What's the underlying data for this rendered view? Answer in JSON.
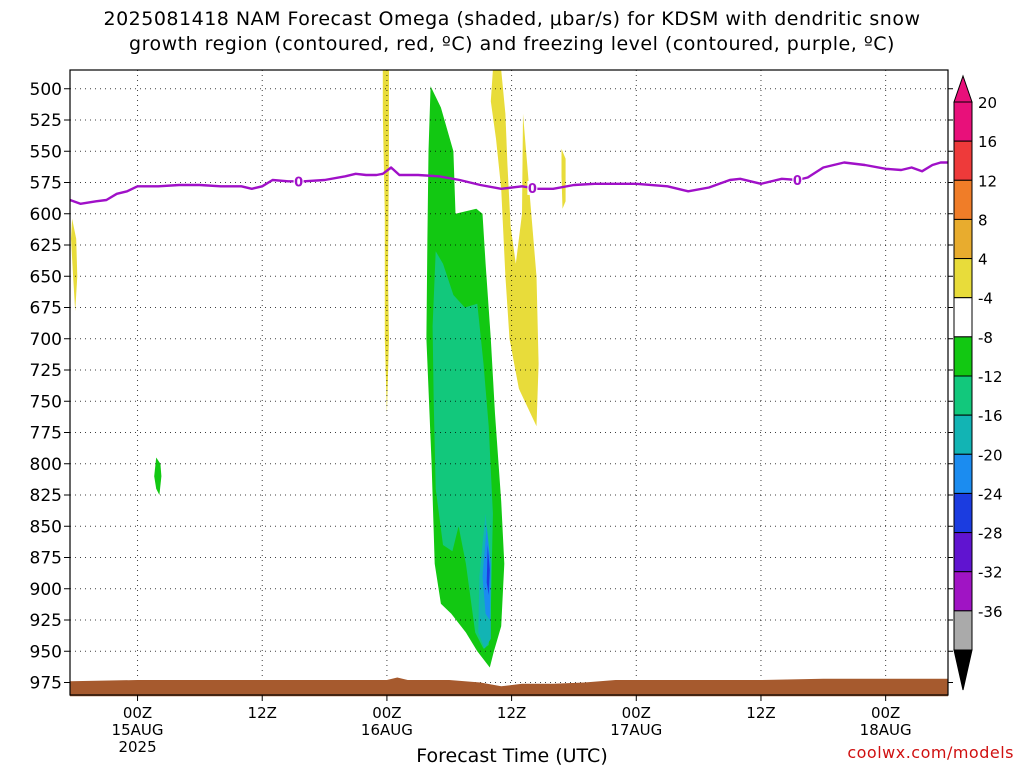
{
  "title": {
    "line1": "2025081418 NAM Forecast Omega (shaded, μbar/s) for KDSM with dendritic snow",
    "line2": "growth region (contoured, red, ºC) and freezing level (contoured, purple, ºC)"
  },
  "credit": "coolwx.com/models",
  "chart_data": {
    "type": "heatmap",
    "xlabel": "Forecast Time (UTC)",
    "ylabel": "",
    "y_axis": {
      "orientation": "pressure, increasing downward",
      "range": [
        485,
        985
      ],
      "ticks": [
        500,
        525,
        550,
        575,
        600,
        625,
        650,
        675,
        700,
        725,
        750,
        775,
        800,
        825,
        850,
        875,
        900,
        925,
        950,
        975
      ]
    },
    "x_axis": {
      "unit": "hours from 00Z 15AUG 2025",
      "range": [
        -6.5,
        78
      ],
      "ticks": [
        {
          "hour": 0,
          "label": "00Z",
          "sub": "15AUG",
          "sub2": "2025"
        },
        {
          "hour": 12,
          "label": "12Z"
        },
        {
          "hour": 24,
          "label": "00Z",
          "sub": "16AUG"
        },
        {
          "hour": 36,
          "label": "12Z"
        },
        {
          "hour": 48,
          "label": "00Z",
          "sub": "17AUG"
        },
        {
          "hour": 60,
          "label": "12Z"
        },
        {
          "hour": 72,
          "label": "00Z",
          "sub": "18AUG"
        }
      ]
    },
    "grid": true,
    "colorbar": {
      "top_arrow": "#e8107a",
      "bottom_arrow": "#000000",
      "bins": [
        {
          "lo": 20,
          "hi": 24,
          "color": "#e8107a"
        },
        {
          "lo": 16,
          "hi": 20,
          "color": "#ee3a3a"
        },
        {
          "lo": 12,
          "hi": 16,
          "color": "#f07d28"
        },
        {
          "lo": 8,
          "hi": 12,
          "color": "#e8ac2e"
        },
        {
          "lo": 4,
          "hi": 8,
          "color": "#e8dc3a"
        },
        {
          "lo": -4,
          "hi": 4,
          "color": "#ffffff"
        },
        {
          "lo": -8,
          "hi": -4,
          "color": "#12c812"
        },
        {
          "lo": -12,
          "hi": -8,
          "color": "#12c87c"
        },
        {
          "lo": -16,
          "hi": -12,
          "color": "#12b4b4"
        },
        {
          "lo": -20,
          "hi": -16,
          "color": "#1b8cf0"
        },
        {
          "lo": -24,
          "hi": -20,
          "color": "#1b3ce0"
        },
        {
          "lo": -28,
          "hi": -24,
          "color": "#6014d0"
        },
        {
          "lo": -32,
          "hi": -28,
          "color": "#a014c4"
        },
        {
          "lo": -36,
          "hi": -32,
          "color": "#aaaaaa"
        }
      ],
      "labels": [
        20,
        16,
        12,
        8,
        4,
        -4,
        -8,
        -12,
        -16,
        -20,
        -24,
        -28,
        -32,
        -36
      ]
    },
    "freezing_level": {
      "label": "0",
      "color": "#a010c8",
      "label_hours": [
        15.5,
        38,
        63.5
      ],
      "points": [
        [
          -6.5,
          589
        ],
        [
          -5.5,
          592
        ],
        [
          -4,
          590
        ],
        [
          -3,
          589
        ],
        [
          -2,
          584
        ],
        [
          -1,
          582
        ],
        [
          0,
          578
        ],
        [
          2,
          578
        ],
        [
          4,
          577
        ],
        [
          6,
          577
        ],
        [
          8,
          578
        ],
        [
          10,
          578
        ],
        [
          11,
          580
        ],
        [
          12,
          578
        ],
        [
          13,
          573
        ],
        [
          14.5,
          574
        ],
        [
          16,
          574
        ],
        [
          18,
          573
        ],
        [
          20,
          570
        ],
        [
          21,
          568
        ],
        [
          22,
          569
        ],
        [
          23,
          569
        ],
        [
          23.6,
          568
        ],
        [
          24.4,
          563
        ],
        [
          25.2,
          569
        ],
        [
          27,
          569
        ],
        [
          29,
          570
        ],
        [
          31,
          573
        ],
        [
          33,
          577
        ],
        [
          35,
          580
        ],
        [
          37,
          578
        ],
        [
          38.5,
          580
        ],
        [
          40,
          580
        ],
        [
          42,
          577
        ],
        [
          44,
          576
        ],
        [
          48,
          576
        ],
        [
          51,
          578
        ],
        [
          53,
          582
        ],
        [
          55,
          579
        ],
        [
          56,
          576
        ],
        [
          57,
          573
        ],
        [
          58,
          572
        ],
        [
          60,
          576
        ],
        [
          62,
          572
        ],
        [
          63.5,
          573
        ],
        [
          64.5,
          571
        ],
        [
          66,
          563
        ],
        [
          68,
          559
        ],
        [
          70,
          561
        ],
        [
          72,
          564
        ],
        [
          73.5,
          565
        ],
        [
          74.5,
          563
        ],
        [
          75.5,
          566
        ],
        [
          76.5,
          561
        ],
        [
          77.3,
          559
        ],
        [
          78,
          559
        ]
      ]
    },
    "terrain": {
      "color": "#a65a2e",
      "points": [
        [
          -6.5,
          974
        ],
        [
          0,
          973
        ],
        [
          12,
          973
        ],
        [
          24,
          973
        ],
        [
          25,
          971
        ],
        [
          26,
          973
        ],
        [
          30,
          973
        ],
        [
          33,
          975
        ],
        [
          35,
          978
        ],
        [
          37,
          976
        ],
        [
          40,
          976
        ],
        [
          43,
          975
        ],
        [
          46,
          973
        ],
        [
          60,
          973
        ],
        [
          66,
          972
        ],
        [
          78,
          972
        ]
      ],
      "base": 986
    },
    "omega_regions": [
      {
        "value": 5,
        "color": "#e8dc3a",
        "points": [
          [
            -6.3,
            604
          ],
          [
            -5.9,
            620
          ],
          [
            -5.8,
            650
          ],
          [
            -6.0,
            678
          ],
          [
            -6.2,
            650
          ],
          [
            -6.4,
            620
          ]
        ]
      },
      {
        "value": 5,
        "color": "#e8dc3a",
        "points": [
          [
            23.6,
            485
          ],
          [
            24.2,
            485
          ],
          [
            24.2,
            550
          ],
          [
            24.1,
            650
          ],
          [
            24.2,
            700
          ],
          [
            24.0,
            760
          ],
          [
            23.8,
            700
          ],
          [
            23.8,
            600
          ],
          [
            23.6,
            520
          ]
        ]
      },
      {
        "value": 5,
        "color": "#e8dc3a",
        "points": [
          [
            34.2,
            485
          ],
          [
            35.0,
            485
          ],
          [
            35.4,
            520
          ],
          [
            35.6,
            560
          ],
          [
            35.9,
            610
          ],
          [
            36.4,
            640
          ],
          [
            37.0,
            600
          ],
          [
            37.1,
            520
          ],
          [
            37.4,
            550
          ],
          [
            38.4,
            650
          ],
          [
            38.6,
            720
          ],
          [
            38.4,
            770
          ],
          [
            36.7,
            740
          ],
          [
            35.8,
            700
          ],
          [
            35.4,
            650
          ],
          [
            35.0,
            580
          ],
          [
            34.5,
            540
          ],
          [
            34.0,
            510
          ]
        ]
      },
      {
        "value": 5,
        "color": "#e8dc3a",
        "points": [
          [
            40.8,
            548
          ],
          [
            41.2,
            556
          ],
          [
            41.2,
            590
          ],
          [
            40.9,
            596
          ],
          [
            40.8,
            570
          ]
        ]
      },
      {
        "value": -6,
        "color": "#12c812",
        "points": [
          [
            28.2,
            498
          ],
          [
            29.2,
            515
          ],
          [
            30.4,
            550
          ],
          [
            30.6,
            600
          ],
          [
            32.6,
            596
          ],
          [
            33.2,
            600
          ],
          [
            33.5,
            640
          ],
          [
            34.0,
            700
          ],
          [
            34.4,
            760
          ],
          [
            35.0,
            830
          ],
          [
            35.3,
            880
          ],
          [
            35.0,
            930
          ],
          [
            34.3,
            950
          ],
          [
            33.9,
            963
          ],
          [
            32.7,
            950
          ],
          [
            31.6,
            935
          ],
          [
            30.2,
            920
          ],
          [
            29.2,
            912
          ],
          [
            28.6,
            880
          ],
          [
            28.3,
            800
          ],
          [
            27.8,
            700
          ],
          [
            27.9,
            620
          ],
          [
            28.0,
            550
          ]
        ]
      },
      {
        "value": -6,
        "color": "#12c812",
        "points": [
          [
            1.8,
            795
          ],
          [
            2.2,
            800
          ],
          [
            2.3,
            810
          ],
          [
            2.1,
            825
          ],
          [
            1.8,
            820
          ],
          [
            1.6,
            810
          ]
        ]
      },
      {
        "value": -10,
        "color": "#12c87c",
        "points": [
          [
            28.7,
            630
          ],
          [
            29.4,
            640
          ],
          [
            30.4,
            665
          ],
          [
            31.5,
            675
          ],
          [
            32.7,
            672
          ],
          [
            33.3,
            720
          ],
          [
            33.8,
            770
          ],
          [
            34.2,
            840
          ],
          [
            34.0,
            920
          ],
          [
            33.8,
            945
          ],
          [
            33.3,
            948
          ],
          [
            32.5,
            935
          ],
          [
            31.6,
            880
          ],
          [
            30.9,
            850
          ],
          [
            30.3,
            870
          ],
          [
            29.4,
            865
          ],
          [
            28.7,
            820
          ],
          [
            28.5,
            750
          ],
          [
            28.4,
            690
          ]
        ]
      },
      {
        "value": -14,
        "color": "#12b4b4",
        "points": [
          [
            33.5,
            840
          ],
          [
            34.0,
            890
          ],
          [
            34.0,
            940
          ],
          [
            33.4,
            948
          ],
          [
            32.8,
            935
          ],
          [
            32.9,
            890
          ]
        ]
      },
      {
        "value": -18,
        "color": "#1b8cf0",
        "points": [
          [
            33.6,
            850
          ],
          [
            34.0,
            880
          ],
          [
            33.9,
            925
          ],
          [
            33.5,
            920
          ],
          [
            33.2,
            890
          ]
        ]
      },
      {
        "value": -22,
        "color": "#1b3ce0",
        "points": [
          [
            33.7,
            865
          ],
          [
            33.9,
            885
          ],
          [
            33.8,
            905
          ],
          [
            33.6,
            895
          ]
        ]
      }
    ]
  }
}
